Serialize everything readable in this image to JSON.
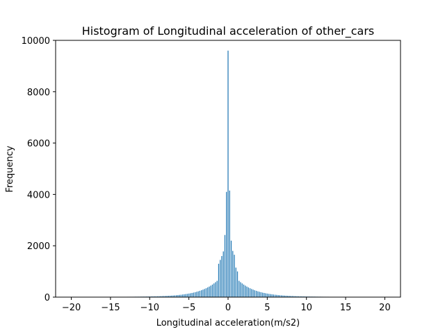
{
  "chart_data": {
    "type": "bar",
    "title": "Histogram of Longitudinal acceleration of other_cars",
    "xlabel": "Longitudinal acceleration(m/s2)",
    "ylabel": "Frequency",
    "xlim": [
      -22,
      22
    ],
    "ylim": [
      0,
      10000
    ],
    "xticks": [
      -20,
      -15,
      -10,
      -5,
      0,
      5,
      10,
      15,
      20
    ],
    "yticks": [
      0,
      2000,
      4000,
      6000,
      8000,
      10000
    ],
    "xtick_labels": [
      "−20",
      "−15",
      "−10",
      "−5",
      "0",
      "5",
      "10",
      "15",
      "20"
    ],
    "ytick_labels": [
      "0",
      "2000",
      "4000",
      "6000",
      "8000",
      "10000"
    ],
    "grid": false,
    "bar_color": "#1f77b4",
    "bin_range": [
      -20,
      20
    ],
    "bin_count": 200,
    "peak_values": {
      "0.0": 9600,
      "-0.2": 4100,
      "0.2": 4150,
      "-0.4": 2420,
      "0.4": 2200,
      "-0.6": 1780,
      "0.6": 1800,
      "-0.8": 1600,
      "0.8": 1650,
      "-1.0": 1450,
      "1.0": 1150,
      "-1.2": 1300,
      "1.2": 1000
    },
    "tail_decay": {
      "amplitude": 1150,
      "scale": 2.2,
      "floor": 30
    }
  }
}
